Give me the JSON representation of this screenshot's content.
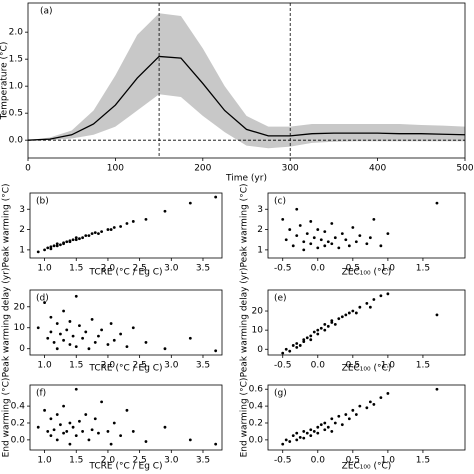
{
  "chart_data": [
    {
      "type": "line",
      "annotation": "(a)",
      "xlabel": "Time (yr)",
      "ylabel": "Temperature (°C)",
      "x": [
        0,
        25,
        50,
        75,
        100,
        125,
        150,
        175,
        200,
        225,
        250,
        275,
        300,
        325,
        350,
        375,
        400,
        425,
        450,
        475,
        500
      ],
      "values": [
        0,
        0.02,
        0.1,
        0.3,
        0.65,
        1.15,
        1.55,
        1.52,
        1.05,
        0.55,
        0.2,
        0.08,
        0.08,
        0.12,
        0.13,
        0.13,
        0.13,
        0.12,
        0.12,
        0.11,
        0.1
      ],
      "upper": [
        0,
        0.05,
        0.18,
        0.55,
        1.2,
        1.95,
        2.35,
        2.3,
        1.7,
        1.0,
        0.45,
        0.25,
        0.25,
        0.3,
        0.3,
        0.3,
        0.3,
        0.3,
        0.28,
        0.27,
        0.25
      ],
      "lower": [
        0,
        0,
        0.03,
        0.1,
        0.25,
        0.55,
        0.85,
        0.8,
        0.45,
        0.15,
        -0.1,
        -0.15,
        -0.12,
        -0.05,
        -0.03,
        -0.02,
        -0.02,
        -0.02,
        -0.02,
        -0.02,
        -0.02
      ],
      "color": "#000000",
      "band_color": "#c8c8c8",
      "vlines": [
        150,
        300
      ],
      "hline": 0,
      "xlim": [
        0,
        500
      ],
      "xticks": [
        0,
        100,
        200,
        300,
        400,
        500
      ],
      "ylim": [
        -0.33,
        2.54
      ],
      "yticks": [
        {
          "value": 0,
          "label": "0.0"
        },
        {
          "value": 0.5,
          "label": "0.5"
        },
        {
          "value": 1,
          "label": "1.0"
        },
        {
          "value": 1.5,
          "label": "1.5"
        },
        {
          "value": 2,
          "label": "2.0"
        }
      ]
    },
    {
      "type": "scatter",
      "annotation": "(b)",
      "xlabel": "TCRE (°C / Eg C)",
      "ylabel": "Peak warming (°C)",
      "color": "#000000",
      "x": [
        0.9,
        1.0,
        1.05,
        1.1,
        1.1,
        1.15,
        1.2,
        1.2,
        1.25,
        1.3,
        1.3,
        1.35,
        1.4,
        1.4,
        1.45,
        1.5,
        1.5,
        1.55,
        1.6,
        1.65,
        1.7,
        1.75,
        1.8,
        1.85,
        1.9,
        2.0,
        2.05,
        2.1,
        2.2,
        2.3,
        2.4,
        2.6,
        2.9,
        3.3,
        3.7
      ],
      "values": [
        0.9,
        1.0,
        1.1,
        1.05,
        1.15,
        1.2,
        1.2,
        1.3,
        1.25,
        1.35,
        1.3,
        1.4,
        1.45,
        1.4,
        1.5,
        1.5,
        1.6,
        1.55,
        1.6,
        1.7,
        1.7,
        1.8,
        1.85,
        1.8,
        1.9,
        2.0,
        2.0,
        2.1,
        2.15,
        2.3,
        2.4,
        2.5,
        2.9,
        3.3,
        3.6
      ],
      "xlim": [
        0.77,
        3.8
      ],
      "xticks": [
        {
          "value": 1,
          "label": "1.0"
        },
        {
          "value": 1.5,
          "label": "1.5"
        },
        {
          "value": 2,
          "label": "2.0"
        },
        {
          "value": 2.5,
          "label": "2.5"
        },
        {
          "value": 3,
          "label": "3.0"
        },
        {
          "value": 3.5,
          "label": "3.5"
        }
      ],
      "ylim": [
        0.6,
        3.8
      ],
      "yticks": [
        1,
        2,
        3
      ]
    },
    {
      "type": "scatter",
      "annotation": "(c)",
      "xlabel": "ZEC₁₀₀ (°C)",
      "ylabel": "Peak warming (°C)",
      "color": "#000000",
      "x": [
        -0.5,
        -0.45,
        -0.4,
        -0.35,
        -0.3,
        -0.3,
        -0.25,
        -0.2,
        -0.2,
        -0.15,
        -0.1,
        -0.1,
        -0.05,
        0.0,
        0.0,
        0.05,
        0.1,
        0.1,
        0.15,
        0.2,
        0.2,
        0.25,
        0.3,
        0.35,
        0.4,
        0.45,
        0.5,
        0.55,
        0.6,
        0.7,
        0.75,
        0.8,
        0.9,
        1.0,
        1.7
      ],
      "values": [
        2.5,
        1.5,
        2.0,
        1.2,
        3.0,
        1.7,
        2.2,
        1.4,
        1.0,
        1.8,
        2.4,
        1.3,
        1.6,
        1.1,
        2.0,
        1.5,
        1.2,
        1.9,
        1.4,
        2.3,
        1.3,
        1.6,
        1.1,
        1.8,
        1.5,
        1.2,
        2.1,
        1.4,
        1.7,
        1.3,
        1.6,
        2.5,
        1.2,
        1.8,
        3.3
      ],
      "xlim": [
        -0.71,
        2.1
      ],
      "xticks": [
        -0.5,
        {
          "value": 0,
          "label": "0.0"
        },
        0.5,
        {
          "value": 1,
          "label": "1.0"
        },
        1.5
      ],
      "ylim": [
        0.6,
        3.8
      ],
      "yticks": [
        1,
        2,
        3
      ]
    },
    {
      "type": "scatter",
      "annotation": "(d)",
      "xlabel": "TCRE (°C / Eg C)",
      "ylabel": "Peak warming delay (yr)",
      "color": "#000000",
      "x": [
        0.9,
        1.0,
        1.05,
        1.1,
        1.1,
        1.15,
        1.2,
        1.2,
        1.25,
        1.3,
        1.3,
        1.35,
        1.4,
        1.4,
        1.45,
        1.5,
        1.5,
        1.55,
        1.6,
        1.65,
        1.7,
        1.75,
        1.8,
        1.85,
        1.9,
        2.0,
        2.05,
        2.1,
        2.2,
        2.3,
        2.4,
        2.6,
        2.9,
        3.3,
        3.7
      ],
      "values": [
        10,
        22,
        5,
        8,
        15,
        3,
        12,
        0,
        7,
        18,
        4,
        9,
        2,
        13,
        6,
        25,
        1,
        11,
        5,
        8,
        0,
        14,
        3,
        6,
        9,
        2,
        12,
        4,
        7,
        1,
        10,
        3,
        0,
        5,
        -1
      ],
      "xlim": [
        0.77,
        3.8
      ],
      "xticks": [
        {
          "value": 1,
          "label": "1.0"
        },
        {
          "value": 1.5,
          "label": "1.5"
        },
        {
          "value": 2,
          "label": "2.0"
        },
        {
          "value": 2.5,
          "label": "2.5"
        },
        {
          "value": 3,
          "label": "3.0"
        },
        {
          "value": 3.5,
          "label": "3.5"
        }
      ],
      "ylim": [
        -3,
        28
      ],
      "yticks": [
        0,
        10,
        20
      ]
    },
    {
      "type": "scatter",
      "annotation": "(e)",
      "xlabel": "ZEC₁₀₀ (°C)",
      "ylabel": "Peak warming delay (yr)",
      "color": "#000000",
      "x": [
        -0.5,
        -0.45,
        -0.4,
        -0.35,
        -0.3,
        -0.3,
        -0.25,
        -0.2,
        -0.2,
        -0.15,
        -0.1,
        -0.1,
        -0.05,
        0.0,
        0.0,
        0.05,
        0.1,
        0.1,
        0.15,
        0.2,
        0.2,
        0.25,
        0.3,
        0.35,
        0.4,
        0.45,
        0.5,
        0.55,
        0.6,
        0.7,
        0.75,
        0.8,
        0.9,
        1.0,
        1.7
      ],
      "values": [
        -2,
        0,
        -1,
        2,
        1,
        3,
        2,
        5,
        4,
        6,
        7,
        5,
        9,
        8,
        10,
        11,
        10,
        13,
        12,
        14,
        15,
        13,
        16,
        17,
        18,
        19,
        20,
        19,
        22,
        24,
        22,
        26,
        28,
        29,
        18
      ],
      "xlim": [
        -0.71,
        2.1
      ],
      "xticks": [
        -0.5,
        {
          "value": 0,
          "label": "0.0"
        },
        0.5,
        {
          "value": 1,
          "label": "1.0"
        },
        1.5
      ],
      "ylim": [
        -3,
        31
      ],
      "yticks": [
        0,
        10,
        20
      ]
    },
    {
      "type": "scatter",
      "annotation": "(f)",
      "xlabel": "TCRE (°C / Eg C)",
      "ylabel": "End warming (°C)",
      "color": "#000000",
      "x": [
        0.9,
        1.0,
        1.05,
        1.1,
        1.1,
        1.15,
        1.2,
        1.2,
        1.25,
        1.3,
        1.3,
        1.35,
        1.4,
        1.4,
        1.45,
        1.5,
        1.5,
        1.55,
        1.6,
        1.65,
        1.7,
        1.75,
        1.8,
        1.85,
        1.9,
        2.0,
        2.05,
        2.1,
        2.2,
        2.3,
        2.4,
        2.6,
        2.9,
        3.3,
        3.7
      ],
      "values": [
        0.15,
        0.35,
        0.1,
        0.05,
        0.25,
        0.12,
        0.3,
        0.0,
        0.18,
        0.08,
        0.4,
        0.1,
        0.2,
        -0.05,
        0.15,
        0.6,
        0.05,
        0.22,
        0.1,
        0.3,
        0.0,
        0.12,
        0.25,
        0.08,
        0.45,
        0.1,
        -0.05,
        0.2,
        0.05,
        0.35,
        0.1,
        -0.02,
        0.15,
        0.0,
        -0.05
      ],
      "xlim": [
        0.77,
        3.8
      ],
      "xticks": [
        {
          "value": 1,
          "label": "1.0"
        },
        {
          "value": 1.5,
          "label": "1.5"
        },
        {
          "value": 2,
          "label": "2.0"
        },
        {
          "value": 2.5,
          "label": "2.5"
        },
        {
          "value": 3,
          "label": "3.0"
        },
        {
          "value": 3.5,
          "label": "3.5"
        }
      ],
      "ylim": [
        -0.12,
        0.65
      ],
      "yticks": [
        {
          "value": 0,
          "label": "0.0"
        },
        {
          "value": 0.2,
          "label": "0.2"
        },
        {
          "value": 0.4,
          "label": "0.4"
        }
      ]
    },
    {
      "type": "scatter",
      "annotation": "(g)",
      "xlabel": "ZEC₁₀₀ (°C)",
      "ylabel": "End warming (°C)",
      "color": "#000000",
      "x": [
        -0.5,
        -0.45,
        -0.4,
        -0.35,
        -0.3,
        -0.3,
        -0.25,
        -0.2,
        -0.2,
        -0.15,
        -0.1,
        -0.1,
        -0.05,
        0.0,
        0.0,
        0.05,
        0.1,
        0.1,
        0.15,
        0.2,
        0.2,
        0.25,
        0.3,
        0.35,
        0.4,
        0.45,
        0.5,
        0.55,
        0.6,
        0.7,
        0.75,
        0.8,
        0.9,
        1.0,
        1.7
      ],
      "values": [
        -0.05,
        0.0,
        -0.02,
        0.05,
        0.0,
        0.08,
        0.03,
        0.1,
        0.02,
        0.08,
        0.12,
        0.05,
        0.1,
        0.15,
        0.08,
        0.18,
        0.12,
        0.2,
        0.15,
        0.25,
        0.1,
        0.2,
        0.28,
        0.18,
        0.3,
        0.25,
        0.35,
        0.3,
        0.4,
        0.38,
        0.45,
        0.42,
        0.5,
        0.55,
        0.6
      ],
      "xlim": [
        -0.71,
        2.1
      ],
      "xticks": [
        -0.5,
        {
          "value": 0,
          "label": "0.0"
        },
        0.5,
        {
          "value": 1,
          "label": "1.0"
        },
        1.5
      ],
      "ylim": [
        -0.12,
        0.65
      ],
      "yticks": [
        {
          "value": 0,
          "label": "0.0"
        },
        {
          "value": 0.2,
          "label": "0.2"
        },
        {
          "value": 0.4,
          "label": "0.4"
        },
        {
          "value": 0.6,
          "label": "0.6"
        }
      ]
    }
  ]
}
